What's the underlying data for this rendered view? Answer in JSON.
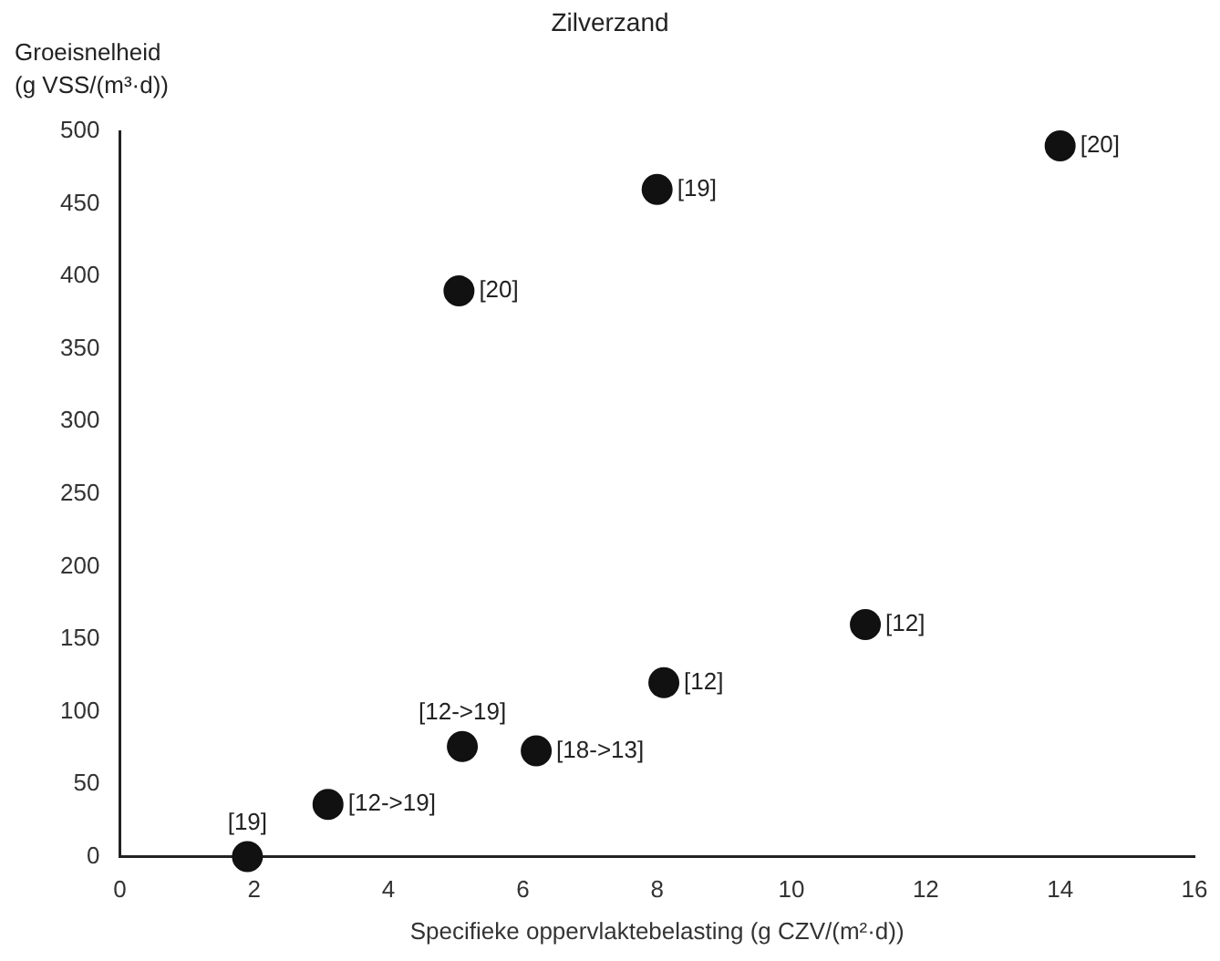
{
  "chart_data": {
    "type": "scatter",
    "title": "Zilverzand",
    "xlabel": "Specifieke oppervlaktebelasting (g CZV/(m²·d))",
    "ylabel": "Groeisnelheid\n(g VSS/(m³·d))",
    "x": [
      1.9,
      3.1,
      5.1,
      6.2,
      8.1,
      11.1,
      5.05,
      8.0,
      14.0
    ],
    "series": [
      {
        "color": "#111111",
        "values": [
          0,
          36,
          76,
          73,
          120,
          160,
          390,
          460,
          490
        ]
      }
    ],
    "marker": "circle",
    "grid": false,
    "legend": false,
    "xlim": [
      0,
      16
    ],
    "xticks": [
      0,
      2,
      4,
      6,
      8,
      10,
      12,
      14,
      16
    ],
    "ylim": [
      0,
      500
    ],
    "yticks": [
      0,
      50,
      100,
      150,
      200,
      250,
      300,
      350,
      400,
      450,
      500
    ],
    "annotations": [
      {
        "text": "[19]",
        "x": 1.9,
        "y": 0
      },
      {
        "text": "[12->19]",
        "x": 3.1,
        "y": 36
      },
      {
        "text": "[12->19]",
        "x": 5.1,
        "y": 76
      },
      {
        "text": "[18->13]",
        "x": 6.2,
        "y": 73
      },
      {
        "text": "[12]",
        "x": 8.1,
        "y": 120
      },
      {
        "text": "[12]",
        "x": 11.1,
        "y": 160
      },
      {
        "text": "[20]",
        "x": 5.05,
        "y": 390
      },
      {
        "text": "[19]",
        "x": 8.0,
        "y": 460
      },
      {
        "text": "[20]",
        "x": 14.0,
        "y": 490
      }
    ]
  }
}
